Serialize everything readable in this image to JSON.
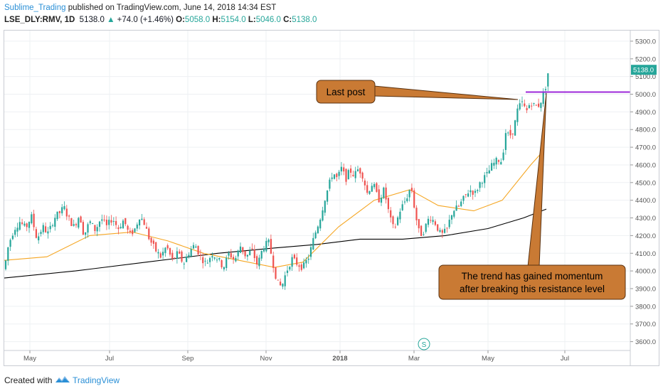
{
  "header": {
    "author": "Sublime_Trading",
    "published": "published on TradingView.com, June 14, 2018 14:34 EST",
    "symbol": "LSE_DLY:RMV, 1D",
    "price": "5138.0",
    "change_arrow": "▲",
    "change": "+74.0 (+1.46%)",
    "o_label": "O:",
    "o_value": "5058.0",
    "h_label": "H:",
    "h_value": "5154.0",
    "l_label": "L:",
    "l_value": "5046.0",
    "c_label": "C:",
    "c_value": "5138.0"
  },
  "footer": {
    "created_with": "Created with",
    "brand": "TradingView"
  },
  "colors": {
    "up": "#26a69a",
    "down": "#ef5350",
    "ma_short": "#f5a623",
    "ma_long": "#000000",
    "resistance": "#9c27d9",
    "callout_fill": "#c97a34",
    "callout_stroke": "#5a3210",
    "price_label": "#26a69a"
  },
  "chart_data": {
    "type": "candlestick",
    "title": "",
    "xlabel": "",
    "ylabel": "",
    "ylim": [
      3550,
      5360
    ],
    "y_ticks": [
      "5300.0",
      "5200.0",
      "5100.0",
      "5000.0",
      "4900.0",
      "4800.0",
      "4700.0",
      "4600.0",
      "4500.0",
      "4400.0",
      "4300.0",
      "4200.0",
      "4100.0",
      "4000.0",
      "3900.0",
      "3800.0",
      "3700.0",
      "3600.0"
    ],
    "x_ticks": [
      "May",
      "Jul",
      "Sep",
      "Nov",
      "2018",
      "Mar",
      "May",
      "Jul"
    ],
    "last_price_label": "5138.0",
    "resistance_level": 5012,
    "symbol_marker": "S",
    "price_path": [
      [
        0,
        4010
      ],
      [
        6,
        4150
      ],
      [
        14,
        4240
      ],
      [
        22,
        4280
      ],
      [
        30,
        4240
      ],
      [
        38,
        4310
      ],
      [
        46,
        4180
      ],
      [
        54,
        4250
      ],
      [
        62,
        4210
      ],
      [
        70,
        4300
      ],
      [
        78,
        4330
      ],
      [
        84,
        4360
      ],
      [
        90,
        4300
      ],
      [
        98,
        4250
      ],
      [
        106,
        4320
      ],
      [
        112,
        4200
      ],
      [
        120,
        4280
      ],
      [
        128,
        4230
      ],
      [
        136,
        4300
      ],
      [
        144,
        4250
      ],
      [
        152,
        4300
      ],
      [
        160,
        4240
      ],
      [
        168,
        4290
      ],
      [
        176,
        4200
      ],
      [
        184,
        4240
      ],
      [
        190,
        4310
      ],
      [
        196,
        4280
      ],
      [
        204,
        4180
      ],
      [
        212,
        4120
      ],
      [
        220,
        4080
      ],
      [
        228,
        4140
      ],
      [
        236,
        4060
      ],
      [
        244,
        4100
      ],
      [
        252,
        4040
      ],
      [
        260,
        4110
      ],
      [
        268,
        4150
      ],
      [
        276,
        4080
      ],
      [
        284,
        4040
      ],
      [
        292,
        4100
      ],
      [
        300,
        4070
      ],
      [
        308,
        4020
      ],
      [
        316,
        4100
      ],
      [
        324,
        4060
      ],
      [
        332,
        4140
      ],
      [
        340,
        4080
      ],
      [
        348,
        4120
      ],
      [
        356,
        4030
      ],
      [
        364,
        4140
      ],
      [
        372,
        4160
      ],
      [
        378,
        4040
      ],
      [
        384,
        3930
      ],
      [
        390,
        3910
      ],
      [
        396,
        3990
      ],
      [
        404,
        4070
      ],
      [
        412,
        4040
      ],
      [
        420,
        4020
      ],
      [
        428,
        4080
      ],
      [
        436,
        4200
      ],
      [
        444,
        4300
      ],
      [
        450,
        4400
      ],
      [
        456,
        4480
      ],
      [
        462,
        4560
      ],
      [
        468,
        4520
      ],
      [
        474,
        4580
      ],
      [
        480,
        4520
      ],
      [
        486,
        4570
      ],
      [
        492,
        4540
      ],
      [
        498,
        4580
      ],
      [
        504,
        4540
      ],
      [
        510,
        4440
      ],
      [
        518,
        4500
      ],
      [
        526,
        4400
      ],
      [
        534,
        4460
      ],
      [
        542,
        4300
      ],
      [
        548,
        4230
      ],
      [
        556,
        4340
      ],
      [
        564,
        4400
      ],
      [
        572,
        4480
      ],
      [
        578,
        4320
      ],
      [
        584,
        4200
      ],
      [
        590,
        4230
      ],
      [
        598,
        4310
      ],
      [
        606,
        4270
      ],
      [
        614,
        4200
      ],
      [
        622,
        4230
      ],
      [
        630,
        4340
      ],
      [
        638,
        4360
      ],
      [
        646,
        4410
      ],
      [
        654,
        4460
      ],
      [
        662,
        4440
      ],
      [
        670,
        4510
      ],
      [
        678,
        4540
      ],
      [
        686,
        4600
      ],
      [
        694,
        4630
      ],
      [
        700,
        4620
      ],
      [
        704,
        4790
      ],
      [
        710,
        4760
      ],
      [
        716,
        4800
      ],
      [
        722,
        4920
      ],
      [
        728,
        4950
      ],
      [
        734,
        4900
      ],
      [
        740,
        4960
      ],
      [
        746,
        4930
      ],
      [
        752,
        4940
      ],
      [
        758,
        5000
      ],
      [
        762,
        5060
      ],
      [
        765,
        5138
      ]
    ],
    "ma_short": [
      [
        0,
        4060
      ],
      [
        60,
        4080
      ],
      [
        120,
        4200
      ],
      [
        180,
        4220
      ],
      [
        230,
        4170
      ],
      [
        280,
        4100
      ],
      [
        330,
        4060
      ],
      [
        380,
        4020
      ],
      [
        420,
        4050
      ],
      [
        470,
        4250
      ],
      [
        520,
        4400
      ],
      [
        570,
        4460
      ],
      [
        610,
        4370
      ],
      [
        660,
        4340
      ],
      [
        700,
        4400
      ],
      [
        740,
        4600
      ],
      [
        758,
        4680
      ]
    ],
    "ma_long": [
      [
        0,
        3960
      ],
      [
        100,
        4000
      ],
      [
        200,
        4050
      ],
      [
        300,
        4100
      ],
      [
        380,
        4130
      ],
      [
        440,
        4150
      ],
      [
        500,
        4180
      ],
      [
        560,
        4180
      ],
      [
        620,
        4200
      ],
      [
        680,
        4240
      ],
      [
        730,
        4300
      ],
      [
        762,
        4350
      ]
    ],
    "annotations": [
      {
        "text": "Last post"
      },
      {
        "text": "The trend has gained momentum after breaking this resistance level"
      }
    ]
  }
}
